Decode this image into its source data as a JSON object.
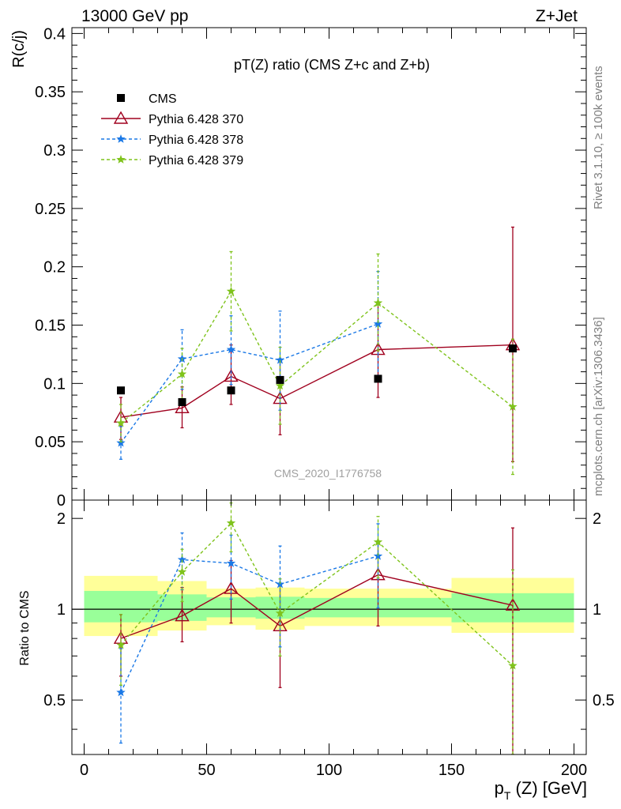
{
  "header": {
    "left": "13000 GeV pp",
    "right": "Z+Jet"
  },
  "side": {
    "rivet": "Rivet 3.1.10, ≥ 100k events",
    "mcplots": "mcplots.cern.ch [arXiv:1306.3436]"
  },
  "colors": {
    "cms": "#000000",
    "py370": "#a0001e",
    "py378": "#1a78e6",
    "py379": "#7fc31c",
    "band_inner": "#99ff99",
    "band_outer": "#ffff99"
  },
  "chart_data": [
    {
      "type": "scatter",
      "title": "pT(Z) ratio (CMS  Z+c and Z+b)",
      "ylabel": "R(c/j)",
      "xlabel": "p_T (Z) [GeV]",
      "watermark": "CMS_2020_I1776758",
      "xlim": [
        -5,
        205
      ],
      "ylim": [
        0,
        0.405
      ],
      "yticks": [
        0,
        0.05,
        0.1,
        0.15,
        0.2,
        0.25,
        0.3,
        0.35,
        0.4
      ],
      "ytick_labels": [
        "0",
        "0.05",
        "0.1",
        "0.15",
        "0.2",
        "0.25",
        "0.3",
        "0.35",
        "0.4"
      ],
      "legend_position": "top-left",
      "series": [
        {
          "name": "CMS",
          "marker": "square",
          "x": [
            15,
            40,
            60,
            80,
            120,
            175
          ],
          "y": [
            0.094,
            0.084,
            0.094,
            0.103,
            0.104,
            0.13
          ]
        },
        {
          "name": "Pythia 6.428 370",
          "marker": "triangle",
          "line": "solid",
          "x": [
            15,
            40,
            60,
            80,
            120,
            175
          ],
          "y": [
            0.071,
            0.079,
            0.106,
            0.087,
            0.129,
            0.133
          ],
          "yerr_lo": [
            0.052,
            0.062,
            0.082,
            0.056,
            0.088,
            0.033
          ],
          "yerr_hi": [
            0.088,
            0.097,
            0.133,
            0.121,
            0.168,
            0.234
          ]
        },
        {
          "name": "Pythia 6.428 378",
          "marker": "star",
          "line": "dashed",
          "x": [
            15,
            40,
            60,
            80,
            120
          ],
          "y": [
            0.049,
            0.121,
            0.129,
            0.12,
            0.151
          ],
          "yerr_lo": [
            0.035,
            0.095,
            0.099,
            0.077,
            0.105
          ],
          "yerr_hi": [
            0.063,
            0.146,
            0.158,
            0.162,
            0.196
          ]
        },
        {
          "name": "Pythia 6.428 379",
          "marker": "star",
          "line": "dashed",
          "x": [
            15,
            40,
            60,
            80,
            120,
            175
          ],
          "y": [
            0.066,
            0.108,
            0.179,
            0.098,
            0.169,
            0.08
          ],
          "yerr_lo": [
            0.05,
            0.086,
            0.145,
            0.065,
            0.128,
            0.022
          ],
          "yerr_hi": [
            0.082,
            0.13,
            0.213,
            0.131,
            0.211,
            0.138
          ]
        }
      ]
    },
    {
      "type": "scatter",
      "ylabel": "Ratio to CMS",
      "xlabel": "p_T (Z) [GeV]",
      "xlim": [
        -5,
        205
      ],
      "ylim": [
        0.33,
        2.3
      ],
      "ylog": true,
      "xticks": [
        0,
        50,
        100,
        150,
        200
      ],
      "xtick_labels": [
        "0",
        "50",
        "100",
        "150",
        "200"
      ],
      "yticks": [
        0.5,
        1,
        2
      ],
      "ytick_labels": [
        "0.5",
        "1",
        "2"
      ],
      "reference_line": 1,
      "bands": [
        {
          "x": [
            0,
            30
          ],
          "inner": [
            0.905,
            1.15
          ],
          "outer": [
            0.815,
            1.29
          ]
        },
        {
          "x": [
            30,
            50
          ],
          "inner": [
            0.915,
            1.12
          ],
          "outer": [
            0.85,
            1.24
          ]
        },
        {
          "x": [
            50,
            70
          ],
          "inner": [
            0.94,
            1.095
          ],
          "outer": [
            0.885,
            1.17
          ]
        },
        {
          "x": [
            70,
            90
          ],
          "inner": [
            0.93,
            1.1
          ],
          "outer": [
            0.855,
            1.18
          ]
        },
        {
          "x": [
            90,
            150
          ],
          "inner": [
            0.94,
            1.09
          ],
          "outer": [
            0.88,
            1.17
          ]
        },
        {
          "x": [
            150,
            200
          ],
          "inner": [
            0.905,
            1.13
          ],
          "outer": [
            0.835,
            1.27
          ]
        }
      ],
      "series": [
        {
          "name": "Pythia 6.428 370",
          "marker": "triangle",
          "line": "solid",
          "x": [
            15,
            40,
            60,
            80,
            120,
            175
          ],
          "y": [
            0.8,
            0.95,
            1.17,
            0.88,
            1.3,
            1.03
          ],
          "yerr_lo": [
            0.6,
            0.78,
            0.9,
            0.55,
            0.88,
            0.33
          ],
          "yerr_hi": [
            0.96,
            1.18,
            1.45,
            1.22,
            1.67,
            1.86
          ]
        },
        {
          "name": "Pythia 6.428 378",
          "marker": "star",
          "line": "dashed",
          "x": [
            15,
            40,
            60,
            80,
            120
          ],
          "y": [
            0.53,
            1.46,
            1.42,
            1.21,
            1.5
          ],
          "yerr_lo": [
            0.36,
            1.16,
            1.08,
            0.75,
            1.01
          ],
          "yerr_hi": [
            0.74,
            1.79,
            1.76,
            1.62,
            1.92
          ]
        },
        {
          "name": "Pythia 6.428 379",
          "marker": "star",
          "line": "dashed",
          "x": [
            15,
            40,
            60,
            80,
            120,
            175
          ],
          "y": [
            0.76,
            1.33,
            1.93,
            0.97,
            1.67,
            0.65
          ],
          "yerr_lo": [
            0.56,
            1.06,
            1.55,
            0.7,
            1.27,
            0.33
          ],
          "yerr_hi": [
            0.96,
            1.58,
            2.25,
            1.26,
            2.03,
            1.35
          ]
        }
      ]
    }
  ]
}
